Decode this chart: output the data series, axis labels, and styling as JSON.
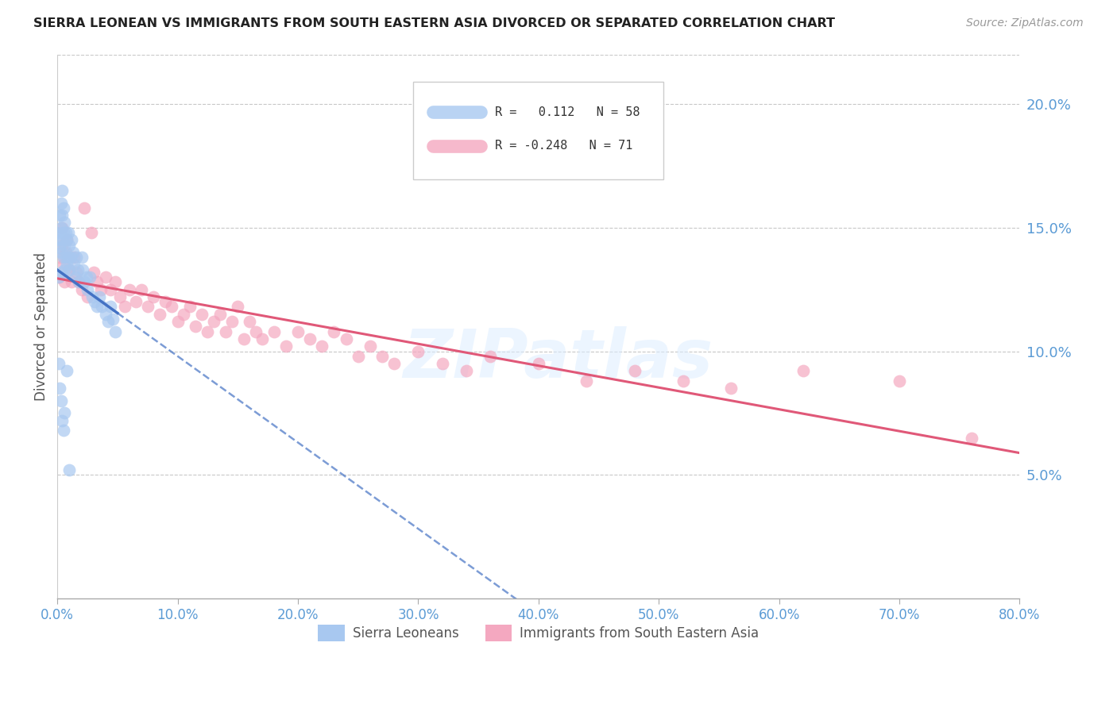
{
  "title": "SIERRA LEONEAN VS IMMIGRANTS FROM SOUTH EASTERN ASIA DIVORCED OR SEPARATED CORRELATION CHART",
  "source": "Source: ZipAtlas.com",
  "ylabel": "Divorced or Separated",
  "legend_label1": "Sierra Leoneans",
  "legend_label2": "Immigrants from South Eastern Asia",
  "R1": 0.112,
  "N1": 58,
  "R2": -0.248,
  "N2": 71,
  "color1": "#a8c8f0",
  "color2": "#f4a8c0",
  "line_color1": "#4472c4",
  "line_color2": "#e05878",
  "xmin": 0.0,
  "xmax": 0.8,
  "ymin": 0.0,
  "ymax": 0.22,
  "yticks": [
    0.05,
    0.1,
    0.15,
    0.2
  ],
  "xticks": [
    0.0,
    0.1,
    0.2,
    0.3,
    0.4,
    0.5,
    0.6,
    0.7,
    0.8
  ],
  "watermark": "ZIPatlas",
  "blue_dots_x": [
    0.001,
    0.001,
    0.002,
    0.002,
    0.002,
    0.003,
    0.003,
    0.003,
    0.003,
    0.004,
    0.004,
    0.004,
    0.005,
    0.005,
    0.005,
    0.006,
    0.006,
    0.006,
    0.007,
    0.007,
    0.008,
    0.008,
    0.009,
    0.009,
    0.01,
    0.01,
    0.011,
    0.012,
    0.013,
    0.014,
    0.015,
    0.016,
    0.017,
    0.018,
    0.02,
    0.021,
    0.022,
    0.024,
    0.025,
    0.027,
    0.029,
    0.031,
    0.033,
    0.035,
    0.037,
    0.04,
    0.042,
    0.044,
    0.046,
    0.048,
    0.001,
    0.002,
    0.003,
    0.004,
    0.005,
    0.006,
    0.008,
    0.01
  ],
  "blue_dots_y": [
    0.13,
    0.145,
    0.155,
    0.142,
    0.148,
    0.16,
    0.15,
    0.14,
    0.132,
    0.165,
    0.155,
    0.145,
    0.158,
    0.148,
    0.138,
    0.152,
    0.143,
    0.133,
    0.148,
    0.138,
    0.145,
    0.135,
    0.148,
    0.138,
    0.143,
    0.133,
    0.138,
    0.145,
    0.14,
    0.135,
    0.13,
    0.138,
    0.133,
    0.128,
    0.138,
    0.133,
    0.128,
    0.13,
    0.125,
    0.13,
    0.122,
    0.12,
    0.118,
    0.122,
    0.118,
    0.115,
    0.112,
    0.118,
    0.113,
    0.108,
    0.095,
    0.085,
    0.08,
    0.072,
    0.068,
    0.075,
    0.092,
    0.052
  ],
  "pink_dots_x": [
    0.001,
    0.002,
    0.003,
    0.004,
    0.005,
    0.006,
    0.007,
    0.008,
    0.01,
    0.012,
    0.014,
    0.016,
    0.018,
    0.02,
    0.022,
    0.025,
    0.028,
    0.03,
    0.033,
    0.036,
    0.04,
    0.044,
    0.048,
    0.052,
    0.056,
    0.06,
    0.065,
    0.07,
    0.075,
    0.08,
    0.085,
    0.09,
    0.095,
    0.1,
    0.105,
    0.11,
    0.115,
    0.12,
    0.125,
    0.13,
    0.135,
    0.14,
    0.145,
    0.15,
    0.155,
    0.16,
    0.165,
    0.17,
    0.18,
    0.19,
    0.2,
    0.21,
    0.22,
    0.23,
    0.24,
    0.25,
    0.26,
    0.27,
    0.28,
    0.3,
    0.32,
    0.34,
    0.36,
    0.4,
    0.44,
    0.48,
    0.52,
    0.56,
    0.62,
    0.7,
    0.76
  ],
  "pink_dots_y": [
    0.13,
    0.138,
    0.143,
    0.15,
    0.135,
    0.128,
    0.14,
    0.145,
    0.133,
    0.128,
    0.138,
    0.132,
    0.128,
    0.125,
    0.158,
    0.122,
    0.148,
    0.132,
    0.128,
    0.125,
    0.13,
    0.125,
    0.128,
    0.122,
    0.118,
    0.125,
    0.12,
    0.125,
    0.118,
    0.122,
    0.115,
    0.12,
    0.118,
    0.112,
    0.115,
    0.118,
    0.11,
    0.115,
    0.108,
    0.112,
    0.115,
    0.108,
    0.112,
    0.118,
    0.105,
    0.112,
    0.108,
    0.105,
    0.108,
    0.102,
    0.108,
    0.105,
    0.102,
    0.108,
    0.105,
    0.098,
    0.102,
    0.098,
    0.095,
    0.1,
    0.095,
    0.092,
    0.098,
    0.095,
    0.088,
    0.092,
    0.088,
    0.085,
    0.092,
    0.088,
    0.065
  ],
  "axis_color": "#5b9bd5",
  "grid_color": "#c8c8c8",
  "background_color": "#ffffff"
}
